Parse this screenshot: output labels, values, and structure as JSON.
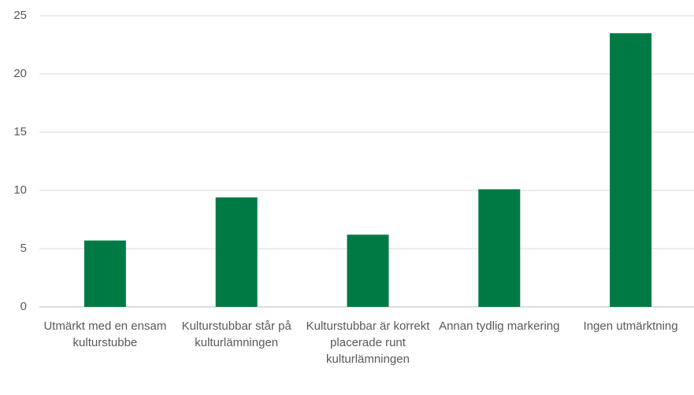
{
  "chart_data": {
    "type": "bar",
    "categories": [
      "Utmärkt med en ensam kulturstubbe",
      "Kulturstubbar står på kulturlämningen",
      "Kulturstubbar är korrekt placerade runt kulturlämningen",
      "Annan tydlig markering",
      "Ingen utmärktning"
    ],
    "values": [
      5.7,
      9.4,
      6.2,
      10.1,
      23.5
    ],
    "color": "#007a45",
    "ylim": [
      0,
      25
    ],
    "yticks": [
      0,
      5,
      10,
      15,
      20,
      25
    ],
    "grid": true
  }
}
